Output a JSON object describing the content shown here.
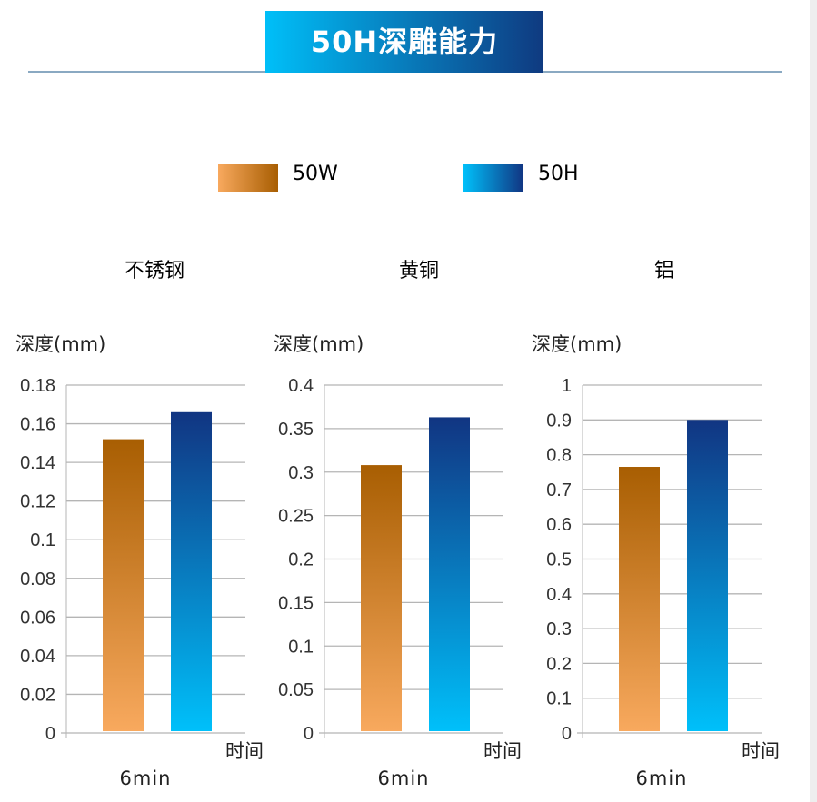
{
  "header": {
    "title": "50H深雕能力"
  },
  "legend": [
    {
      "label": "50W",
      "colors": [
        "#f8a95e",
        "#a85e02"
      ]
    },
    {
      "label": "50H",
      "colors": [
        "#00c0fa",
        "#113582"
      ]
    }
  ],
  "chart_data": [
    {
      "type": "bar",
      "title": "不锈钢",
      "ylabel": "深度(mm)",
      "xlabel": "时间",
      "categories": [
        "6min"
      ],
      "ylim": [
        0,
        0.18
      ],
      "ticks": [
        "0",
        "0.02",
        "0.04",
        "0.06",
        "0.08",
        "0.1",
        "0.12",
        "0.14",
        "0.16",
        "0.18"
      ],
      "grid": true,
      "series": [
        {
          "name": "50W",
          "values": [
            0.152
          ]
        },
        {
          "name": "50H",
          "values": [
            0.166
          ]
        }
      ]
    },
    {
      "type": "bar",
      "title": "黄铜",
      "ylabel": "深度(mm)",
      "xlabel": "时间",
      "categories": [
        "6min"
      ],
      "ylim": [
        0,
        0.4
      ],
      "ticks": [
        "0",
        "0.05",
        "0.1",
        "0.15",
        "0.2",
        "0.25",
        "0.3",
        "0.35",
        "0.4"
      ],
      "grid": true,
      "series": [
        {
          "name": "50W",
          "values": [
            0.308
          ]
        },
        {
          "name": "50H",
          "values": [
            0.363
          ]
        }
      ]
    },
    {
      "type": "bar",
      "title": "铝",
      "ylabel": "深度(mm)",
      "xlabel": "时间",
      "categories": [
        "6min"
      ],
      "ylim": [
        0,
        1
      ],
      "ticks": [
        "0",
        "0.1",
        "0.2",
        "0.3",
        "0.4",
        "0.5",
        "0.6",
        "0.7",
        "0.8",
        "0.9",
        "1"
      ],
      "grid": true,
      "series": [
        {
          "name": "50W",
          "values": [
            0.765
          ]
        },
        {
          "name": "50H",
          "values": [
            0.9
          ]
        }
      ]
    }
  ]
}
